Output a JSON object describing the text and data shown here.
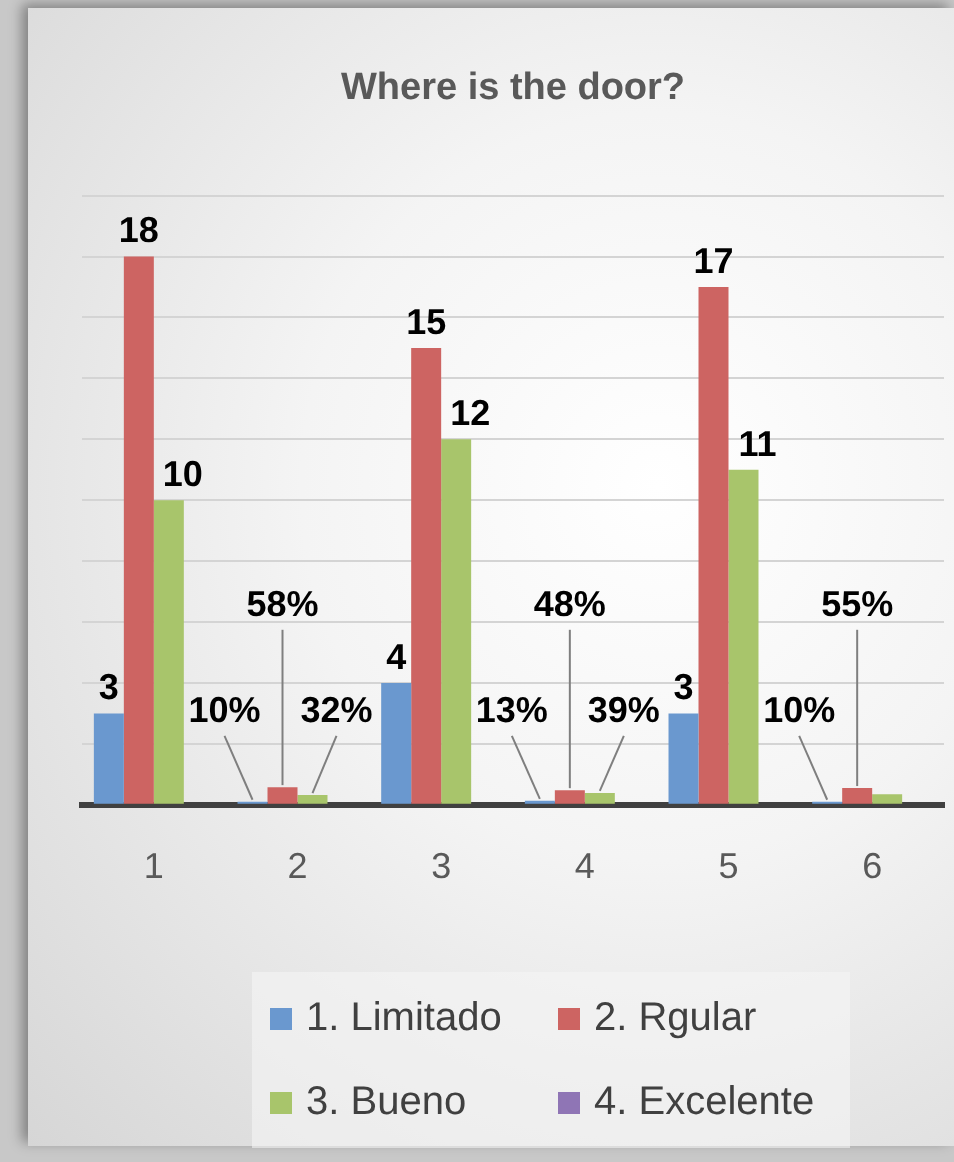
{
  "chart_data": {
    "type": "bar",
    "title": "Where is the door?",
    "categories": [
      "1",
      "2",
      "3",
      "4",
      "5",
      "6"
    ],
    "series": [
      {
        "name": "1. Limitado",
        "color": "#6a98cf",
        "values": [
          3,
          0.1,
          4,
          0.13,
          3,
          0.1
        ],
        "value_labels": [
          "3",
          "10%",
          "4",
          "13%",
          "3",
          "10%"
        ]
      },
      {
        "name": "2. Rgular",
        "color": "#cd6462",
        "values": [
          18,
          0.58,
          15,
          0.48,
          17,
          0.55
        ],
        "value_labels": [
          "18",
          "58%",
          "15",
          "48%",
          "17",
          "55%"
        ]
      },
      {
        "name": "3. Bueno",
        "color": "#a8c56b",
        "values": [
          10,
          0.32,
          12,
          0.39,
          11,
          0.35
        ],
        "value_labels": [
          "10",
          "32%",
          "12",
          "39%",
          "11",
          null
        ]
      },
      {
        "name": "4. Excelente",
        "color": "#8f75b5",
        "values": [
          null,
          null,
          null,
          null,
          null,
          null
        ]
      }
    ],
    "ylim": [
      0,
      20
    ],
    "yticks": [
      0,
      2,
      4,
      6,
      8,
      10,
      12,
      14,
      16,
      18,
      20
    ],
    "tick_labels": "x",
    "grid": "y",
    "legend": "bottom"
  }
}
